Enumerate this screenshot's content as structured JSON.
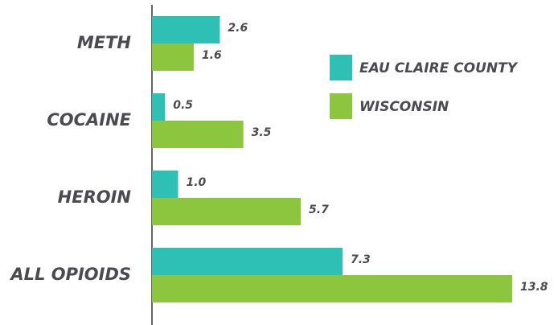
{
  "chart_data": {
    "type": "hbar",
    "categories": [
      "METH",
      "COCAINE",
      "HEROIN",
      "ALL OPIOIDS"
    ],
    "series": [
      {
        "name": "EAU CLAIRE COUNTY",
        "color": "#2ebfb5",
        "values": [
          2.6,
          0.5,
          1.0,
          7.3
        ],
        "value_labels": [
          "2.6",
          "0.5",
          "1.0",
          "7.3"
        ]
      },
      {
        "name": "WISCONSIN",
        "color": "#8cc63f",
        "values": [
          1.6,
          3.5,
          5.7,
          13.8
        ],
        "value_labels": [
          "1.6",
          "3.5",
          "5.7",
          "13.8"
        ]
      }
    ],
    "xlim": [
      0,
      14
    ],
    "legend": "upper right"
  }
}
